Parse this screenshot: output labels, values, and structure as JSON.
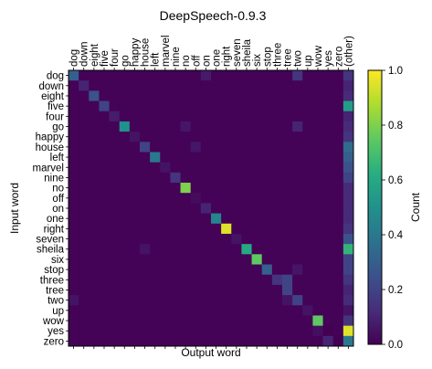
{
  "chart_data": {
    "type": "heatmap",
    "title": "DeepSpeech-0.9.3",
    "xlabel": "Output word",
    "ylabel": "Input word",
    "x_categories": [
      "dog",
      "down",
      "eight",
      "five",
      "four",
      "go",
      "happy",
      "house",
      "left",
      "marvel",
      "nine",
      "no",
      "off",
      "on",
      "one",
      "right",
      "seven",
      "sheila",
      "six",
      "stop",
      "three",
      "tree",
      "two",
      "up",
      "wow",
      "yes",
      "zero",
      "(other)"
    ],
    "y_categories": [
      "dog",
      "down",
      "eight",
      "five",
      "four",
      "go",
      "happy",
      "house",
      "left",
      "marvel",
      "nine",
      "no",
      "off",
      "on",
      "one",
      "right",
      "seven",
      "sheila",
      "six",
      "stop",
      "three",
      "tree",
      "two",
      "up",
      "wow",
      "yes",
      "zero"
    ],
    "colorbar": {
      "label": "Count",
      "range": [
        0,
        1
      ],
      "ticks": [
        "0.0",
        "0.2",
        "0.4",
        "0.6",
        "0.8",
        "1.0"
      ],
      "colormap": "viridis"
    },
    "diagonal": [
      0.3,
      0.1,
      0.25,
      0.2,
      0.08,
      0.5,
      0.05,
      0.2,
      0.4,
      0.05,
      0.15,
      0.8,
      0.03,
      0.1,
      0.45,
      0.95,
      0.05,
      0.6,
      0.75,
      0.3,
      0.15,
      0.2,
      0.2,
      0.05,
      0.75,
      0.0,
      0.0
    ],
    "other": [
      0.15,
      0.1,
      0.12,
      0.55,
      0.1,
      0.12,
      0.15,
      0.35,
      0.3,
      0.25,
      0.2,
      0.12,
      0.12,
      0.12,
      0.12,
      0.15,
      0.25,
      0.65,
      0.2,
      0.2,
      0.15,
      0.1,
      0.12,
      0.05,
      0.15,
      0.95,
      0.4
    ],
    "extra_cells": [
      {
        "row": "dog",
        "col": "two",
        "value": 0.15
      },
      {
        "row": "dog",
        "col": "on",
        "value": 0.07
      },
      {
        "row": "go",
        "col": "two",
        "value": 0.1
      },
      {
        "row": "go",
        "col": "no",
        "value": 0.06
      },
      {
        "row": "house",
        "col": "off",
        "value": 0.06
      },
      {
        "row": "stop",
        "col": "two",
        "value": 0.06
      },
      {
        "row": "three",
        "col": "tree",
        "value": 0.2
      },
      {
        "row": "two",
        "col": "dog",
        "value": 0.05
      },
      {
        "row": "two",
        "col": "tree",
        "value": 0.05
      },
      {
        "row": "yes",
        "col": "wow",
        "value": 0.04
      },
      {
        "row": "sheila",
        "col": "house",
        "value": 0.05
      },
      {
        "row": "zero",
        "col": "yes",
        "value": 0.1
      }
    ]
  }
}
